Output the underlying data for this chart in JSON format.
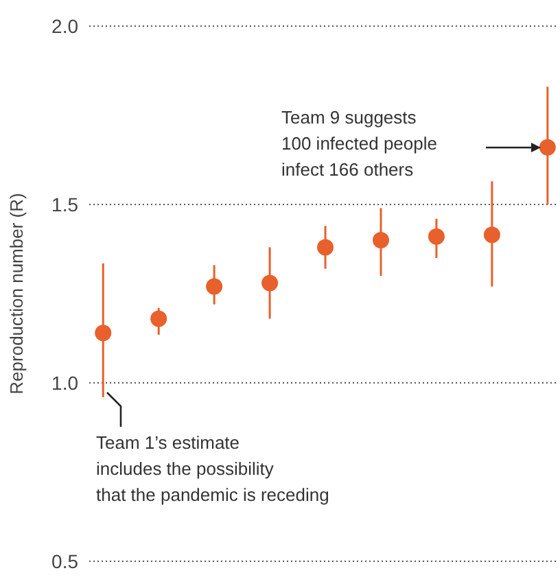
{
  "chart_data": {
    "type": "scatter",
    "ylabel": "Reproduction number (R)",
    "categories": [
      null,
      null,
      null,
      null,
      null,
      null,
      null,
      null,
      null
    ],
    "values": [
      1.14,
      1.18,
      1.27,
      1.28,
      1.38,
      1.4,
      1.41,
      1.415,
      1.66
    ],
    "errors": [
      [
        0.96,
        1.335
      ],
      [
        1.135,
        1.21
      ],
      [
        1.22,
        1.33
      ],
      [
        1.18,
        1.38
      ],
      [
        1.32,
        1.44
      ],
      [
        1.3,
        1.49
      ],
      [
        1.35,
        1.46
      ],
      [
        1.27,
        1.565
      ],
      [
        1.5,
        1.83
      ]
    ],
    "color": "#e8602c",
    "ylim": [
      0.5,
      2.0
    ],
    "yticks": [
      {
        "value": 0.5,
        "label": "0.5"
      },
      {
        "value": 1,
        "label": "1.0"
      },
      {
        "value": 1.5,
        "label": "1.5"
      },
      {
        "value": 2,
        "label": "2.0"
      }
    ],
    "grid": "y",
    "marker": "circle",
    "tick_labels": "y",
    "annotations": [
      "Team 9 suggests\n100 infected people\ninfect 166 others",
      "Team 1’s estimate\nincludes the possibility\nthat the pandemic is receding"
    ]
  }
}
